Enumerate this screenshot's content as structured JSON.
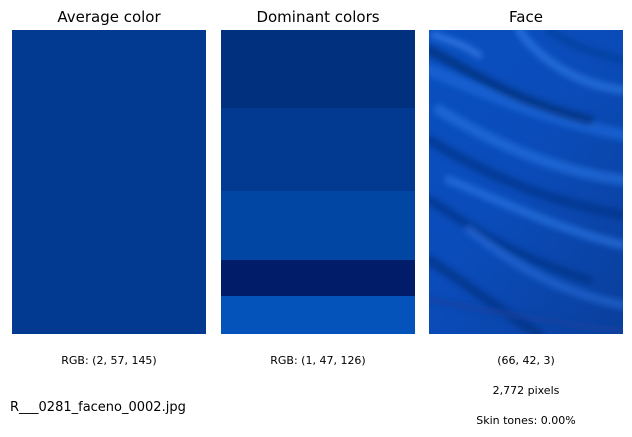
{
  "panels": {
    "average": {
      "title": "Average color",
      "color": "#023991",
      "caption": "RGB: (2, 57, 145)"
    },
    "dominant": {
      "title": "Dominant colors",
      "caption": "RGB: (1, 47, 126)",
      "bands": [
        {
          "color": "#01307f",
          "fraction": 0.255
        },
        {
          "color": "#023a92",
          "fraction": 0.275
        },
        {
          "color": "#0246a4",
          "fraction": 0.225
        },
        {
          "color": "#011d6a",
          "fraction": 0.12
        },
        {
          "color": "#0353bb",
          "fraction": 0.125
        }
      ]
    },
    "face": {
      "title": "Face",
      "caption_rgb": "(66, 42, 3)",
      "caption_pixels": "2,772 pixels",
      "caption_skin": "Skin tones: 0.00%"
    }
  },
  "filename": "R___0281_faceno_0002.jpg"
}
